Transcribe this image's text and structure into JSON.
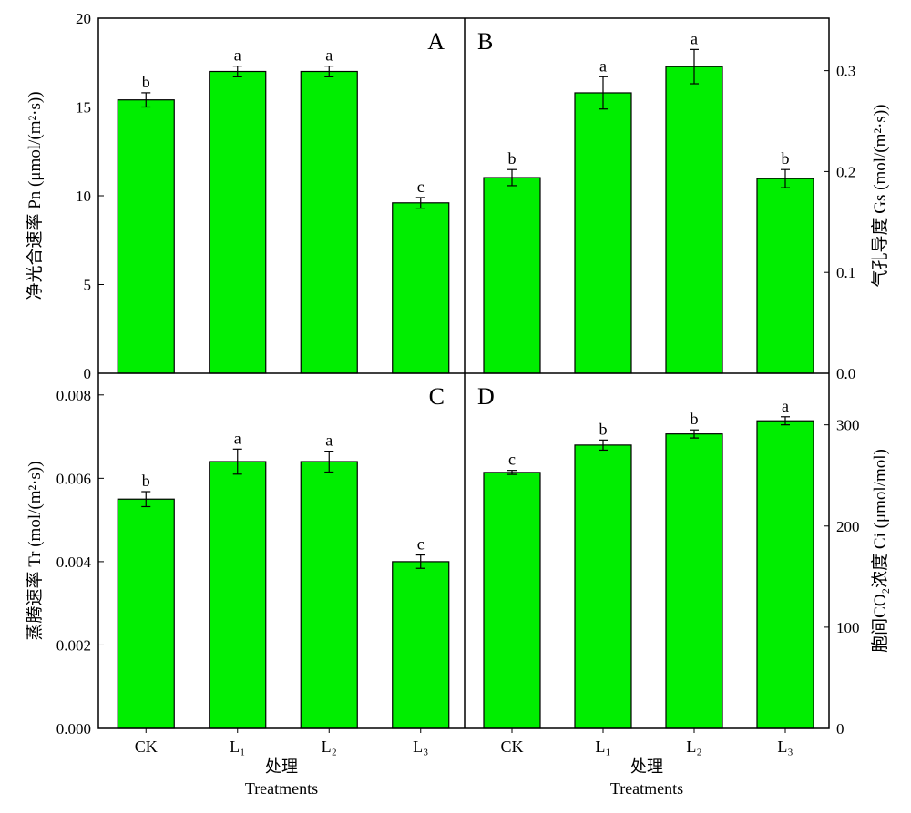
{
  "chart_data": [
    {
      "panel": "A",
      "type": "bar",
      "categories": [
        "CK",
        "L1",
        "L2",
        "L3"
      ],
      "values": [
        15.4,
        17.0,
        17.0,
        9.6
      ],
      "errors": [
        0.4,
        0.3,
        0.3,
        0.3
      ],
      "letters": [
        "b",
        "a",
        "a",
        "c"
      ],
      "ylabel": "净光合速率 Pn (μmol/(m²·s))",
      "ylim": [
        0,
        20
      ],
      "yticks": [
        0,
        5,
        10,
        15,
        20
      ],
      "ytick_labels": [
        "0",
        "5",
        "10",
        "15",
        "20"
      ],
      "axis_side": "left"
    },
    {
      "panel": "B",
      "type": "bar",
      "categories": [
        "CK",
        "L1",
        "L2",
        "L3"
      ],
      "values": [
        0.194,
        0.278,
        0.304,
        0.193
      ],
      "errors": [
        0.008,
        0.016,
        0.017,
        0.009
      ],
      "letters": [
        "b",
        "a",
        "a",
        "b"
      ],
      "ylabel": "气孔导度 Gs (mol/(m²·s))",
      "ylim": [
        0,
        0.352
      ],
      "yticks": [
        0,
        0.1,
        0.2,
        0.3
      ],
      "ytick_labels": [
        "0.0",
        "0.1",
        "0.2",
        "0.3"
      ],
      "axis_side": "right"
    },
    {
      "panel": "C",
      "type": "bar",
      "categories": [
        "CK",
        "L1",
        "L2",
        "L3"
      ],
      "values": [
        0.0055,
        0.0064,
        0.0064,
        0.004
      ],
      "errors": [
        0.00018,
        0.0003,
        0.00025,
        0.00016
      ],
      "letters": [
        "b",
        "a",
        "a",
        "c"
      ],
      "ylabel": "蒸腾速率 Tr (mol/(m²·s))",
      "ylim": [
        0,
        0.00852
      ],
      "yticks": [
        0,
        0.002,
        0.004,
        0.006,
        0.008
      ],
      "ytick_labels": [
        "0.000",
        "0.002",
        "0.004",
        "0.006",
        "0.008"
      ],
      "axis_side": "left"
    },
    {
      "panel": "D",
      "type": "bar",
      "categories": [
        "CK",
        "L1",
        "L2",
        "L3"
      ],
      "values": [
        253,
        280,
        291,
        304
      ],
      "errors": [
        2,
        5,
        4,
        4
      ],
      "letters": [
        "c",
        "b",
        "b",
        "a"
      ],
      "ylabel": "胞间CO₂浓度 Ci (μmol/mol)",
      "ylim": [
        0,
        351
      ],
      "yticks": [
        0,
        100,
        200,
        300
      ],
      "ytick_labels": [
        "0",
        "100",
        "200",
        "300"
      ],
      "axis_side": "right"
    }
  ],
  "xaxis": {
    "tick_labels": [
      "CK",
      "L₁",
      "L₂",
      "L₃"
    ],
    "label_cn": "处理",
    "label_en": "Treatments"
  },
  "colors": {
    "bar": "#00ee00",
    "edge": "#000000"
  }
}
